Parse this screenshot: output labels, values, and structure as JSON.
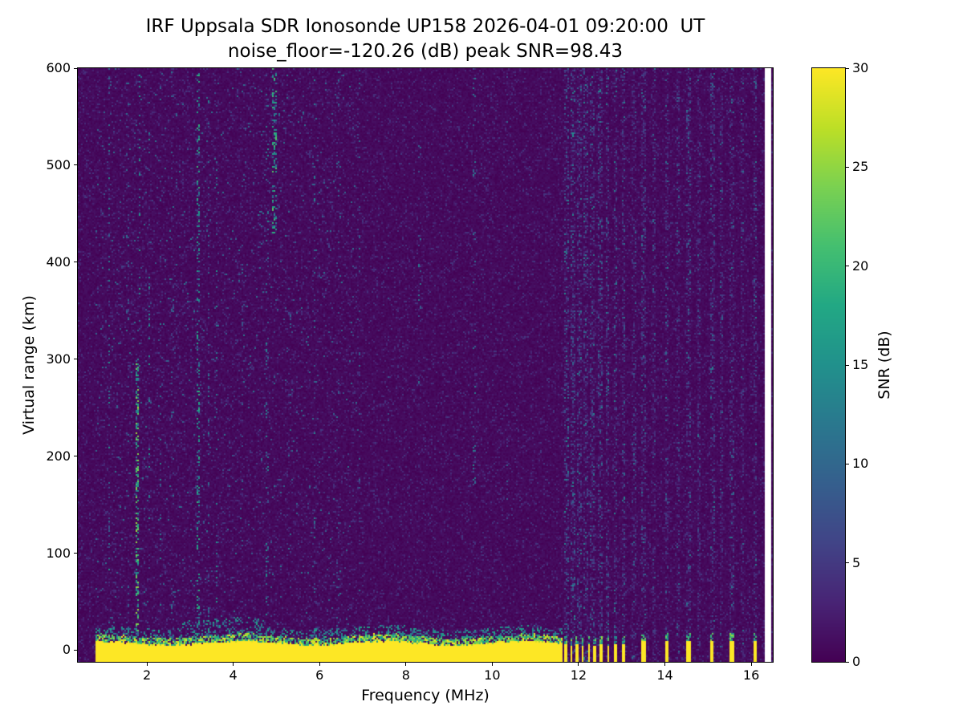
{
  "title": {
    "line1": "IRF Uppsala SDR Ionosonde UP158 2026-04-01 09:20:00  UT",
    "line2": "noise_floor=-120.26 (dB) peak SNR=98.43"
  },
  "chart_data": {
    "type": "heatmap",
    "title": "IRF Uppsala SDR Ionosonde UP158 2026-04-01 09:20:00 UT",
    "subtitle": "noise_floor=-120.26 (dB) peak SNR=98.43",
    "station": "UP158",
    "timestamp": "2026-04-01 09:20:00 UT",
    "noise_floor_db": -120.26,
    "peak_snr_db": 98.43,
    "xlabel": "Frequency (MHz)",
    "ylabel": "Virtual range (km)",
    "xlim": [
      0.4,
      16.5
    ],
    "ylim": [
      -12,
      600
    ],
    "x_ticks": [
      2,
      4,
      6,
      8,
      10,
      12,
      14,
      16
    ],
    "y_ticks": [
      0,
      100,
      200,
      300,
      400,
      500,
      600
    ],
    "grid": false,
    "colorbar": {
      "label": "SNR (dB)",
      "ticks": [
        0,
        5,
        10,
        15,
        20,
        25,
        30
      ],
      "clim": [
        0,
        30
      ],
      "position": "right"
    },
    "colormap": {
      "name": "viridis",
      "stops": [
        [
          0,
          "#440154"
        ],
        [
          0.1,
          "#482475"
        ],
        [
          0.2,
          "#414487"
        ],
        [
          0.3,
          "#355f8d"
        ],
        [
          0.4,
          "#2a788e"
        ],
        [
          0.5,
          "#21918c"
        ],
        [
          0.6,
          "#22a884"
        ],
        [
          0.7,
          "#44bf70"
        ],
        [
          0.8,
          "#7ad151"
        ],
        [
          0.9,
          "#bddf26"
        ],
        [
          1,
          "#fde725"
        ]
      ]
    },
    "features": {
      "sweep_start_mhz": 0.82,
      "sweep_end_mhz": 11.62,
      "no_data_band_mhz": [
        16.33,
        16.45
      ],
      "ground_pulse": {
        "h_top_km": 7,
        "fuzz_top_km": 22,
        "snr": 30
      },
      "noise_region": {
        "f_range": [
          0.82,
          6.9
        ],
        "speckle_prob": 0.018,
        "snr_range": [
          3,
          12
        ]
      },
      "streaks": [
        {
          "f": 1.13,
          "w": 0.06,
          "p": 0.12,
          "v": [
            6,
            16
          ],
          "h": [
            0,
            600
          ]
        },
        {
          "f": 1.55,
          "w": 0.05,
          "p": 0.06,
          "v": [
            5,
            12
          ],
          "h": [
            0,
            600
          ]
        },
        {
          "f": 1.78,
          "w": 0.09,
          "p": 0.38,
          "v": [
            10,
            26
          ],
          "h": [
            0,
            300
          ]
        },
        {
          "f": 1.83,
          "w": 0.07,
          "p": 0.13,
          "v": [
            8,
            18
          ],
          "h": [
            280,
            600
          ]
        },
        {
          "f": 2.05,
          "w": 0.06,
          "p": 0.1,
          "v": [
            6,
            16
          ],
          "h": [
            100,
            600
          ]
        },
        {
          "f": 2.32,
          "w": 0.05,
          "p": 0.09,
          "v": [
            6,
            14
          ],
          "h": [
            0,
            600
          ]
        },
        {
          "f": 2.6,
          "w": 0.05,
          "p": 0.05,
          "v": [
            5,
            12
          ],
          "h": [
            0,
            600
          ]
        },
        {
          "f": 3.18,
          "w": 0.07,
          "p": 0.22,
          "v": [
            8,
            20
          ],
          "h": [
            0,
            600
          ]
        },
        {
          "f": 3.42,
          "w": 0.05,
          "p": 0.08,
          "v": [
            6,
            14
          ],
          "h": [
            0,
            600
          ]
        },
        {
          "f": 3.62,
          "w": 0.06,
          "p": 0.11,
          "v": [
            7,
            16
          ],
          "h": [
            0,
            600
          ]
        },
        {
          "f": 4.22,
          "w": 0.05,
          "p": 0.06,
          "v": [
            5,
            12
          ],
          "h": [
            0,
            600
          ]
        },
        {
          "f": 4.78,
          "w": 0.06,
          "p": 0.1,
          "v": [
            6,
            16
          ],
          "h": [
            0,
            600
          ]
        },
        {
          "f": 4.95,
          "w": 0.09,
          "p": 0.32,
          "v": [
            9,
            22
          ],
          "h": [
            430,
            600
          ]
        },
        {
          "f": 5.32,
          "w": 0.05,
          "p": 0.05,
          "v": [
            5,
            11
          ],
          "h": [
            0,
            600
          ]
        },
        {
          "f": 5.88,
          "w": 0.06,
          "p": 0.08,
          "v": [
            6,
            14
          ],
          "h": [
            0,
            600
          ]
        },
        {
          "f": 6.42,
          "w": 0.05,
          "p": 0.05,
          "v": [
            5,
            11
          ],
          "h": [
            0,
            600
          ]
        },
        {
          "f": 6.92,
          "w": 0.05,
          "p": 0.06,
          "v": [
            5,
            12
          ],
          "h": [
            0,
            600
          ]
        },
        {
          "f": 7.6,
          "w": 0.05,
          "p": 0.03,
          "v": [
            4,
            10
          ],
          "h": [
            0,
            600
          ]
        },
        {
          "f": 8.32,
          "w": 0.06,
          "p": 0.07,
          "v": [
            5,
            13
          ],
          "h": [
            250,
            520
          ]
        },
        {
          "f": 9.58,
          "w": 0.06,
          "p": 0.08,
          "v": [
            6,
            14
          ],
          "h": [
            150,
            600
          ]
        },
        {
          "f": 10.35,
          "w": 0.05,
          "p": 0.04,
          "v": [
            4,
            10
          ],
          "h": [
            0,
            600
          ]
        }
      ],
      "interference_lines": [
        {
          "f": 11.72,
          "snr": 9
        },
        {
          "f": 11.87,
          "snr": 9
        },
        {
          "f": 12.02,
          "snr": 8
        },
        {
          "f": 12.17,
          "snr": 8
        },
        {
          "f": 12.32,
          "snr": 8
        },
        {
          "f": 12.5,
          "snr": 8
        },
        {
          "f": 12.68,
          "snr": 8
        },
        {
          "f": 12.86,
          "snr": 8
        },
        {
          "f": 13.04,
          "snr": 8
        },
        {
          "f": 13.28,
          "snr": 6
        },
        {
          "f": 13.5,
          "snr": 7
        },
        {
          "f": 13.75,
          "snr": 6
        },
        {
          "f": 14.05,
          "snr": 7
        },
        {
          "f": 14.3,
          "snr": 6
        },
        {
          "f": 14.55,
          "snr": 7
        },
        {
          "f": 14.8,
          "snr": 6
        },
        {
          "f": 15.1,
          "snr": 7
        },
        {
          "f": 15.32,
          "snr": 6
        },
        {
          "f": 15.55,
          "snr": 7
        },
        {
          "f": 15.8,
          "snr": 6
        },
        {
          "f": 16.1,
          "snr": 7
        }
      ],
      "rfi_blips": [
        {
          "f": 11.7,
          "w": 0.07,
          "top": 6
        },
        {
          "f": 11.83,
          "w": 0.06,
          "top": 5
        },
        {
          "f": 11.96,
          "w": 0.06,
          "top": 6
        },
        {
          "f": 12.1,
          "w": 0.06,
          "top": 5
        },
        {
          "f": 12.24,
          "w": 0.06,
          "top": 6
        },
        {
          "f": 12.38,
          "w": 0.06,
          "top": 5
        },
        {
          "f": 12.53,
          "w": 0.06,
          "top": 6
        },
        {
          "f": 12.69,
          "w": 0.06,
          "top": 5
        },
        {
          "f": 12.86,
          "w": 0.06,
          "top": 6
        },
        {
          "f": 13.03,
          "w": 0.07,
          "top": 7
        },
        {
          "f": 13.5,
          "w": 0.09,
          "top": 10
        },
        {
          "f": 14.05,
          "w": 0.09,
          "top": 10
        },
        {
          "f": 14.55,
          "w": 0.09,
          "top": 10
        },
        {
          "f": 15.1,
          "w": 0.08,
          "top": 9
        },
        {
          "f": 15.55,
          "w": 0.08,
          "top": 9
        },
        {
          "f": 16.1,
          "w": 0.09,
          "top": 10
        }
      ]
    }
  }
}
